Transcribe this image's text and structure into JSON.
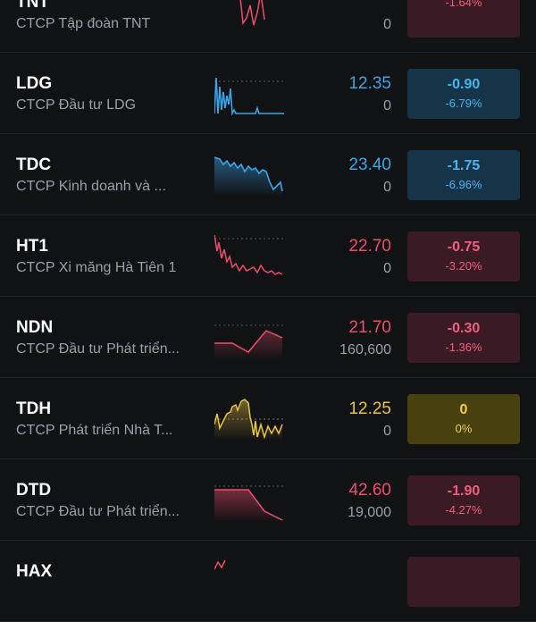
{
  "stocks": [
    {
      "symbol": "TNT",
      "name": "CTCP Tập đoàn TNT",
      "price": "",
      "volume": "0",
      "change": "",
      "percent": "-1.64%",
      "trend": "down",
      "spark_color": "#ee4e6e"
    },
    {
      "symbol": "LDG",
      "name": "CTCP Đầu tư LDG",
      "price": "12.35",
      "volume": "0",
      "change": "-0.90",
      "percent": "-6.79%",
      "trend": "up-blue",
      "spark_color": "#3aa6e8"
    },
    {
      "symbol": "TDC",
      "name": "CTCP Kinh doanh và ...",
      "price": "23.40",
      "volume": "0",
      "change": "-1.75",
      "percent": "-6.96%",
      "trend": "up-blue",
      "spark_color": "#3aa6e8"
    },
    {
      "symbol": "HT1",
      "name": "CTCP Xi măng Hà Tiên 1",
      "price": "22.70",
      "volume": "0",
      "change": "-0.75",
      "percent": "-3.20%",
      "trend": "down",
      "spark_color": "#ee4e6e"
    },
    {
      "symbol": "NDN",
      "name": "CTCP Đầu tư Phát triển...",
      "price": "21.70",
      "volume": "160,600",
      "change": "-0.30",
      "percent": "-1.36%",
      "trend": "down",
      "spark_color": "#ee4e6e"
    },
    {
      "symbol": "TDH",
      "name": "CTCP Phát triển Nhà T...",
      "price": "12.25",
      "volume": "0",
      "change": "0",
      "percent": "0%",
      "trend": "ref",
      "spark_color": "#e9c542"
    },
    {
      "symbol": "DTD",
      "name": "CTCP Đầu tư Phát triển...",
      "price": "42.60",
      "volume": "19,000",
      "change": "-1.90",
      "percent": "-4.27%",
      "trend": "down",
      "spark_color": "#ee4e6e"
    },
    {
      "symbol": "HAX",
      "name": "",
      "price": "",
      "volume": "",
      "change": "",
      "percent": "",
      "trend": "down",
      "spark_color": "#ee4e6e"
    }
  ]
}
